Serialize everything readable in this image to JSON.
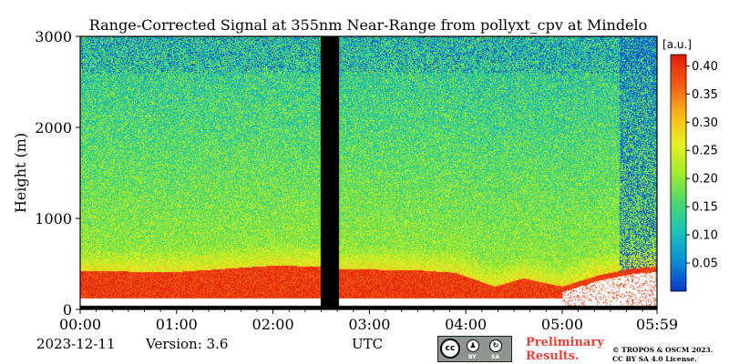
{
  "chart_data": {
    "type": "heatmap",
    "title": "Range-Corrected Signal at 355nm Near-Range from pollyxt_cpv at Mindelo",
    "ylabel": "Height (m)",
    "xlabel": "UTC",
    "xlim": [
      "00:00",
      "05:59"
    ],
    "ylim": [
      0,
      3000
    ],
    "x_ticks": [
      "00:00",
      "01:00",
      "02:00",
      "03:00",
      "04:00",
      "05:00",
      "05:59"
    ],
    "y_ticks": [
      "0",
      "1000",
      "2000",
      "3000"
    ],
    "colorbar": {
      "unit": "[a.u.]",
      "range": [
        0,
        0.42
      ],
      "ticks": [
        "0.05",
        "0.10",
        "0.15",
        "0.20",
        "0.25",
        "0.30",
        "0.35",
        "0.40"
      ],
      "colormap": [
        "#0b36c9",
        "#0a8fd6",
        "#18c2bb",
        "#47d86c",
        "#a3eb2c",
        "#e8ee22",
        "#f9b31b",
        "#f35a12",
        "#e21c0a"
      ]
    },
    "data_gap": {
      "start": "02:30",
      "end": "02:41"
    },
    "profile": {
      "description_hours": [
        0.0,
        1.0,
        2.0,
        2.5,
        2.7,
        3.5,
        3.9,
        4.3,
        4.6,
        5.0,
        5.4,
        5.75,
        5.98
      ],
      "mixing_layer_top_m": [
        420,
        410,
        480,
        470,
        440,
        430,
        400,
        250,
        340,
        250,
        380,
        450,
        470
      ],
      "surface_signal_range": [
        0.36,
        0.42
      ],
      "upper_signal_range": [
        0.07,
        0.16
      ]
    }
  },
  "footer": {
    "date": "2023-12-11",
    "version": "Version: 3.6",
    "utc_label": "UTC",
    "preliminary_1": "Preliminary",
    "preliminary_2": "Results.",
    "copyright_1": "© TROPOS & OSCM 2023.",
    "copyright_2": "CC BY SA 4.0 License."
  },
  "license_badge": {
    "cc": "cc",
    "by": "BY",
    "sa": "SA"
  }
}
